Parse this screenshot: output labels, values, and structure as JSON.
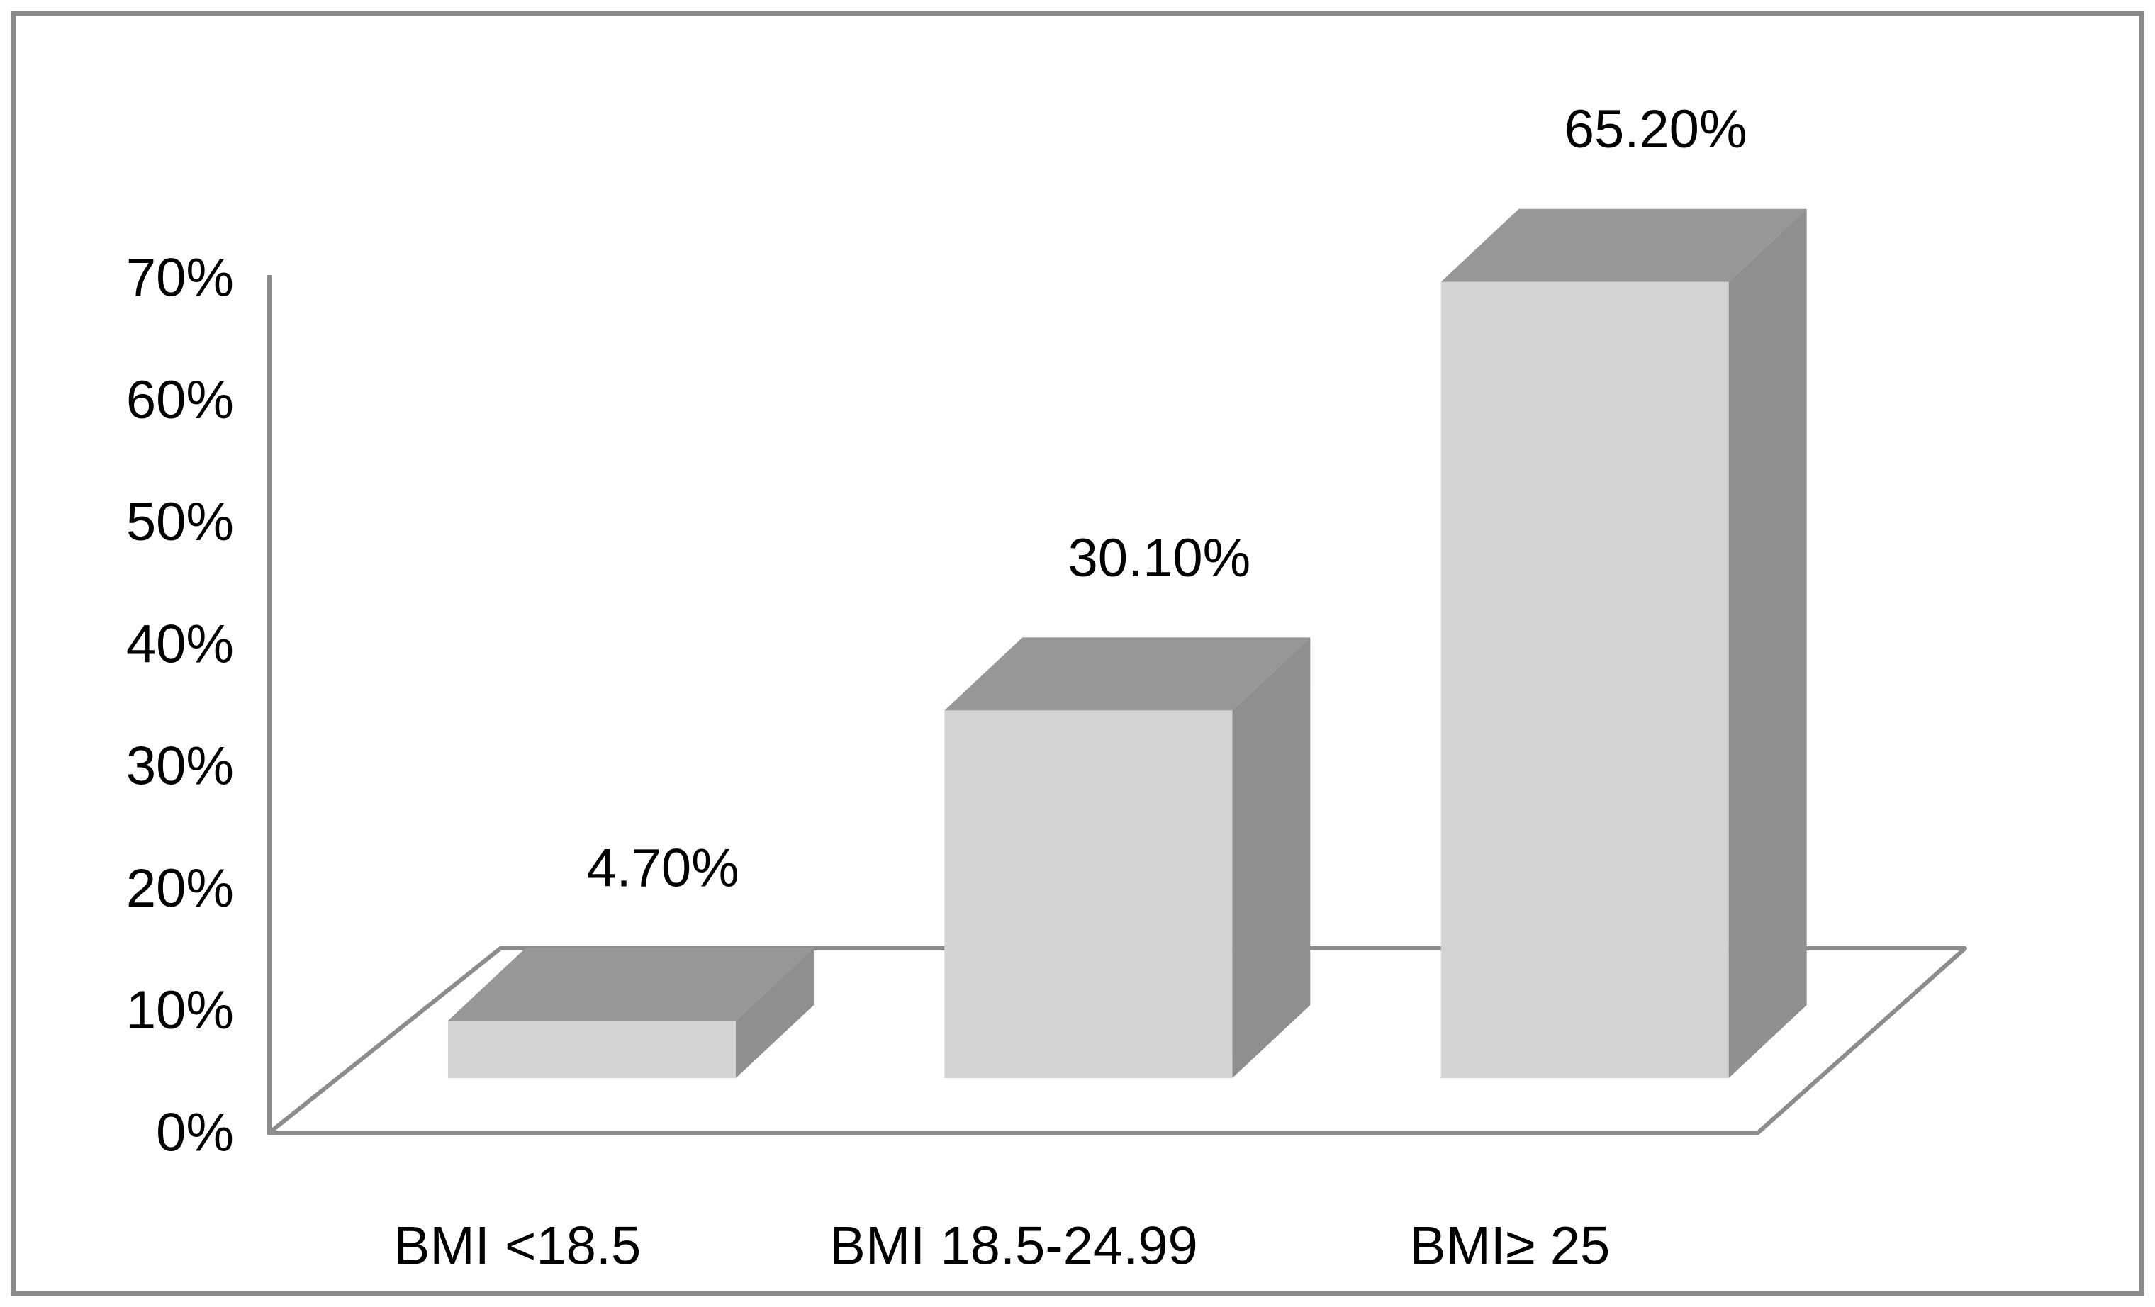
{
  "figure": {
    "background": "#ffffff",
    "border_color": "#8a8a8a"
  },
  "chart_data": {
    "type": "bar",
    "projection": "3d-column",
    "title": "",
    "xlabel": "",
    "ylabel": "",
    "categories": [
      "BMI <18.5",
      "BMI 18.5-24.99",
      "BMI≥ 25"
    ],
    "values": [
      4.7,
      30.1,
      65.2
    ],
    "data_labels": [
      "4.70%",
      "30.10%",
      "65.20%"
    ],
    "yticks": [
      "0%",
      "10%",
      "20%",
      "30%",
      "40%",
      "50%",
      "60%",
      "70%"
    ],
    "ylim": [
      0,
      70
    ],
    "grid": false,
    "legend": "none",
    "colors": {
      "bar_front": "#d4d2d2",
      "bar_top": "#999697",
      "bar_side": "#908e8f",
      "axis_line": "#8c8c8c",
      "floor_line": "#8c8c8c",
      "text": "#000000"
    }
  }
}
